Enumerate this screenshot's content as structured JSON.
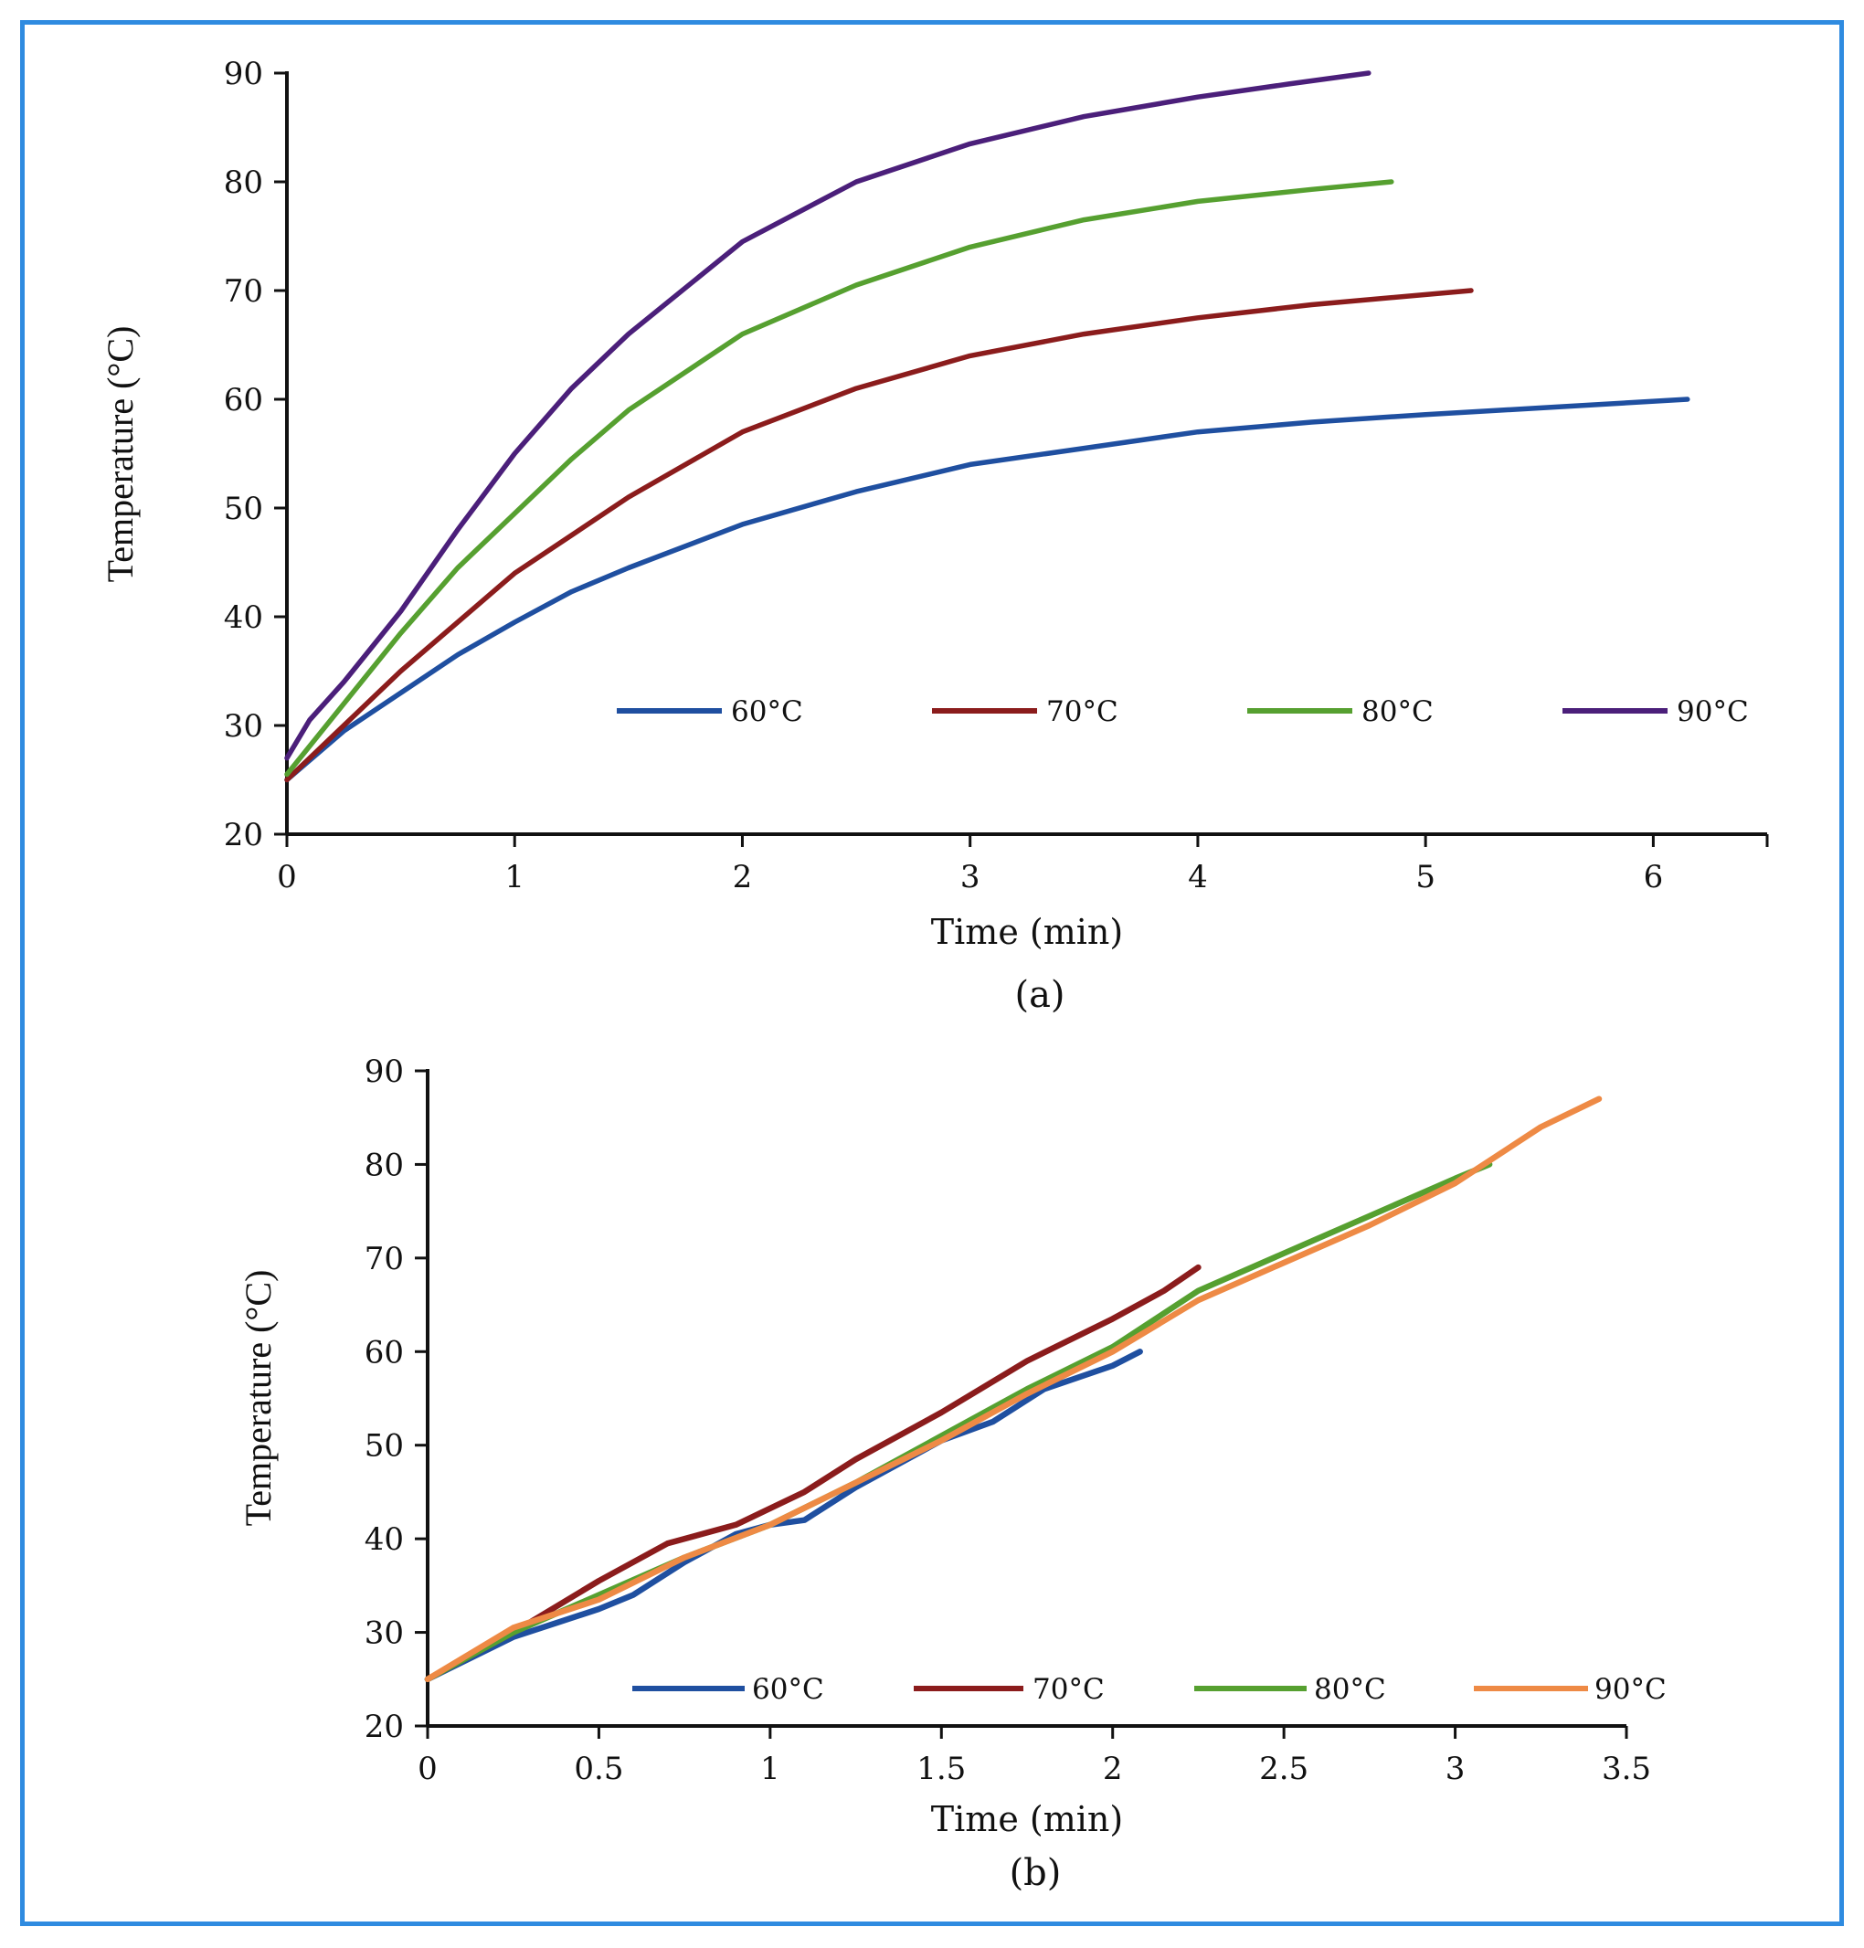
{
  "chart_data": [
    {
      "type": "line",
      "panel": "a",
      "caption": "(a)",
      "xlabel": "Time (min)",
      "ylabel": "Temperature (°C)",
      "xlim": [
        0,
        6.5
      ],
      "ylim": [
        20,
        90
      ],
      "xticks": [
        0,
        1,
        2,
        3,
        4,
        5,
        6
      ],
      "xtick_labels": [
        "0",
        "1",
        "2",
        "3",
        "4",
        "5",
        "6"
      ],
      "yticks": [
        20,
        30,
        40,
        50,
        60,
        70,
        80,
        90
      ],
      "ytick_labels": [
        "20",
        "30",
        "40",
        "50",
        "60",
        "70",
        "80",
        "90"
      ],
      "grid": false,
      "legend_position": "bottom-right inside",
      "series": [
        {
          "name": "60°C",
          "color": "#1f4fa0",
          "x": [
            0,
            0.25,
            0.5,
            0.75,
            1,
            1.25,
            1.5,
            2,
            2.5,
            3,
            3.5,
            4,
            4.5,
            5,
            5.5,
            6.15
          ],
          "y": [
            25,
            29.5,
            33,
            36.5,
            39.5,
            42.3,
            44.5,
            48.5,
            51.5,
            54,
            55.5,
            57,
            57.9,
            58.6,
            59.2,
            60
          ]
        },
        {
          "name": "70°C",
          "color": "#8b1c1c",
          "x": [
            0,
            0.25,
            0.5,
            0.75,
            1,
            1.25,
            1.5,
            2,
            2.5,
            3,
            3.5,
            4,
            4.5,
            5.2
          ],
          "y": [
            25,
            30,
            35,
            39.5,
            44,
            47.5,
            51,
            57,
            61,
            64,
            66,
            67.5,
            68.7,
            70
          ]
        },
        {
          "name": "80°C",
          "color": "#56a030",
          "x": [
            0,
            0.25,
            0.5,
            0.75,
            1,
            1.25,
            1.5,
            2,
            2.5,
            3,
            3.5,
            4,
            4.5,
            4.85
          ],
          "y": [
            25.5,
            32,
            38.5,
            44.5,
            49.5,
            54.5,
            59,
            66,
            70.5,
            74,
            76.5,
            78.2,
            79.3,
            80
          ]
        },
        {
          "name": "90°C",
          "color": "#4b1f7a",
          "x": [
            0,
            0.1,
            0.25,
            0.5,
            0.75,
            1,
            1.25,
            1.5,
            2,
            2.5,
            3,
            3.5,
            4,
            4.4,
            4.75
          ],
          "y": [
            27,
            30.5,
            34,
            40.5,
            48,
            55,
            61,
            66,
            74.5,
            80,
            83.5,
            86,
            87.8,
            89,
            90
          ]
        }
      ]
    },
    {
      "type": "line",
      "panel": "b",
      "caption": "(b)",
      "xlabel": "Time (min)",
      "ylabel": "Temperature (°C)",
      "xlim": [
        0,
        3.5
      ],
      "ylim": [
        20,
        90
      ],
      "xticks": [
        0,
        0.5,
        1,
        1.5,
        2,
        2.5,
        3,
        3.5
      ],
      "xtick_labels": [
        "0",
        "0.5",
        "1",
        "1.5",
        "2",
        "2.5",
        "3",
        "3.5"
      ],
      "yticks": [
        20,
        30,
        40,
        50,
        60,
        70,
        80,
        90
      ],
      "ytick_labels": [
        "20",
        "30",
        "40",
        "50",
        "60",
        "70",
        "80",
        "90"
      ],
      "grid": false,
      "legend_position": "bottom-right inside",
      "series": [
        {
          "name": "60°C",
          "color": "#1f4fa0",
          "x": [
            0,
            0.25,
            0.5,
            0.6,
            0.75,
            0.9,
            1,
            1.1,
            1.25,
            1.5,
            1.65,
            1.8,
            2,
            2.08
          ],
          "y": [
            25,
            29.5,
            32.5,
            34,
            37.5,
            40.5,
            41.5,
            42,
            45.5,
            50.5,
            52.5,
            56,
            58.5,
            60
          ]
        },
        {
          "name": "70°C",
          "color": "#8b1c1c",
          "x": [
            0,
            0.25,
            0.5,
            0.7,
            0.9,
            1.1,
            1.25,
            1.5,
            1.75,
            2,
            2.15,
            2.25
          ],
          "y": [
            25,
            30,
            35.5,
            39.5,
            41.5,
            45,
            48.5,
            53.5,
            59,
            63.5,
            66.5,
            69
          ]
        },
        {
          "name": "80°C",
          "color": "#56a030",
          "x": [
            0,
            0.25,
            0.5,
            0.75,
            1,
            1.25,
            1.5,
            1.75,
            2,
            2.25,
            2.5,
            2.75,
            3,
            3.1
          ],
          "y": [
            25,
            30,
            34,
            38,
            41.5,
            46,
            51,
            56,
            60.5,
            66.5,
            70.5,
            74.5,
            78.5,
            80
          ]
        },
        {
          "name": "90°C",
          "color": "#ee8a45",
          "x": [
            0,
            0.25,
            0.5,
            0.75,
            1,
            1.25,
            1.5,
            1.75,
            2,
            2.25,
            2.5,
            2.75,
            3,
            3.25,
            3.42
          ],
          "y": [
            25,
            30.5,
            33.5,
            38,
            41.5,
            46,
            50.5,
            55.5,
            60,
            65.5,
            69.5,
            73.5,
            78,
            84,
            87
          ]
        }
      ]
    }
  ]
}
